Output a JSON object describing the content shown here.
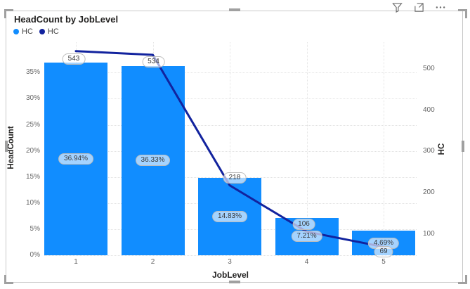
{
  "visual": {
    "title": "HeadCount by JobLevel",
    "legend": [
      {
        "label": "HC",
        "color": "#118DFF"
      },
      {
        "label": "HC",
        "color": "#12239E"
      }
    ],
    "header_icons": [
      "filter-icon",
      "focus-mode-icon",
      "more-options-icon"
    ]
  },
  "chart_data": {
    "type": "combo-column-line",
    "title": "HeadCount by JobLevel",
    "categories": [
      "1",
      "2",
      "3",
      "4",
      "5"
    ],
    "xlabel": "JobLevel",
    "series": [
      {
        "name": "HC",
        "type": "bar",
        "axis": "left",
        "color": "#118DFF",
        "values": [
          36.94,
          36.33,
          14.83,
          7.21,
          4.69
        ],
        "data_labels": [
          "36.94%",
          "36.33%",
          "14.83%",
          "7.21%",
          "4.69%"
        ]
      },
      {
        "name": "HC",
        "type": "line",
        "axis": "right",
        "color": "#12239E",
        "values": [
          543,
          534,
          218,
          106,
          69
        ],
        "data_labels": [
          "543",
          "534",
          "218",
          "106",
          "69"
        ]
      }
    ],
    "left_axis": {
      "title": "HeadCount",
      "tick_labels": [
        "0%",
        "5%",
        "10%",
        "15%",
        "20%",
        "25%",
        "30%",
        "35%"
      ],
      "tick_values": [
        0,
        5,
        10,
        15,
        20,
        25,
        30,
        35
      ],
      "range": [
        0,
        40.85
      ]
    },
    "right_axis": {
      "title": "HC",
      "tick_labels": [
        "100",
        "200",
        "300",
        "400",
        "500"
      ],
      "tick_values": [
        100,
        200,
        300,
        400,
        500
      ],
      "range": [
        48.9,
        564.6
      ]
    },
    "grid": true,
    "legend_position": "top-left"
  },
  "colors": {
    "bar": "#118DFF",
    "line": "#12239E",
    "grid": "#E1E1E1",
    "tick_text": "#666666",
    "axis_title": "#252423",
    "card_border": "#C9C9C9",
    "handle": "#A0A0A0",
    "chip_bg": "rgba(255,255,255,0.62)",
    "chip_border": "#BCBCBC",
    "chip_text": "#383838",
    "icon": "#6B6B6B"
  }
}
